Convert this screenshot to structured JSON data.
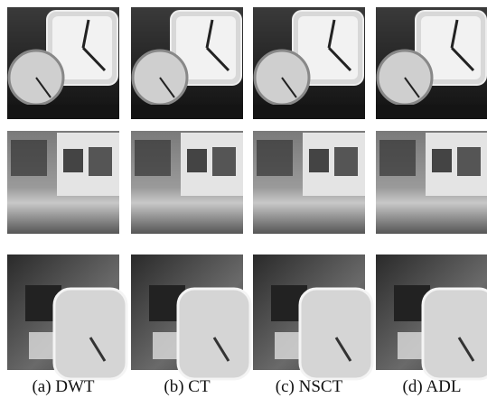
{
  "captions": [
    "(a) DWT",
    "(b) CT",
    "(c) NSCT",
    "(d) ADL"
  ]
}
